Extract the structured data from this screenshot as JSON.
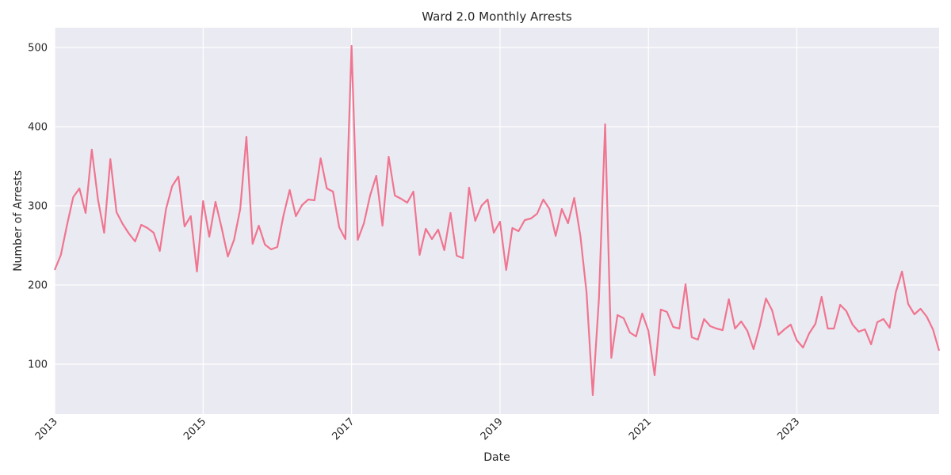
{
  "chart_data": {
    "type": "line",
    "title": "Ward 2.0 Monthly Arrests",
    "xlabel": "Date",
    "ylabel": "Number of Arrests",
    "xlim": [
      "2013-01",
      "2024-12"
    ],
    "ylim": [
      37,
      525
    ],
    "grid": true,
    "x_ticks": [
      "2013",
      "2015",
      "2017",
      "2019",
      "2021",
      "2023"
    ],
    "y_ticks": [
      100,
      200,
      300,
      400,
      500
    ],
    "colors": {
      "line": "#f07590",
      "plot_bg": "#eaeaf2",
      "grid": "#ffffff",
      "text": "#262626"
    },
    "series": [
      {
        "x": [
          "2013-01",
          "2013-02",
          "2013-03",
          "2013-04",
          "2013-05",
          "2013-06",
          "2013-07",
          "2013-08",
          "2013-09",
          "2013-10",
          "2013-11",
          "2013-12",
          "2014-01",
          "2014-02",
          "2014-03",
          "2014-04",
          "2014-05",
          "2014-06",
          "2014-07",
          "2014-08",
          "2014-09",
          "2014-10",
          "2014-11",
          "2014-12",
          "2015-01",
          "2015-02",
          "2015-03",
          "2015-04",
          "2015-05",
          "2015-06",
          "2015-07",
          "2015-08",
          "2015-09",
          "2015-10",
          "2015-11",
          "2015-12",
          "2016-01",
          "2016-02",
          "2016-03",
          "2016-04",
          "2016-05",
          "2016-06",
          "2016-07",
          "2016-08",
          "2016-09",
          "2016-10",
          "2016-11",
          "2016-12",
          "2017-01",
          "2017-02",
          "2017-03",
          "2017-04",
          "2017-05",
          "2017-06",
          "2017-07",
          "2017-08",
          "2017-09",
          "2017-10",
          "2017-11",
          "2017-12",
          "2018-01",
          "2018-02",
          "2018-03",
          "2018-04",
          "2018-05",
          "2018-06",
          "2018-07",
          "2018-08",
          "2018-09",
          "2018-10",
          "2018-11",
          "2018-12",
          "2019-01",
          "2019-02",
          "2019-03",
          "2019-04",
          "2019-05",
          "2019-06",
          "2019-07",
          "2019-08",
          "2019-09",
          "2019-10",
          "2019-11",
          "2019-12",
          "2020-01",
          "2020-02",
          "2020-03",
          "2020-04",
          "2020-05",
          "2020-06",
          "2020-07",
          "2020-08",
          "2020-09",
          "2020-10",
          "2020-11",
          "2020-12",
          "2021-01",
          "2021-02",
          "2021-03",
          "2021-04",
          "2021-05",
          "2021-06",
          "2021-07",
          "2021-08",
          "2021-09",
          "2021-10",
          "2021-11",
          "2021-12",
          "2022-01",
          "2022-02",
          "2022-03",
          "2022-04",
          "2022-05",
          "2022-06",
          "2022-07",
          "2022-08",
          "2022-09",
          "2022-10",
          "2022-11",
          "2022-12",
          "2023-01",
          "2023-02",
          "2023-03",
          "2023-04",
          "2023-05",
          "2023-06",
          "2023-07",
          "2023-08",
          "2023-09",
          "2023-10",
          "2023-11",
          "2023-12",
          "2024-01",
          "2024-02",
          "2024-03",
          "2024-04",
          "2024-05",
          "2024-06",
          "2024-07",
          "2024-08",
          "2024-09",
          "2024-10",
          "2024-11",
          "2024-12"
        ],
        "values": [
          219,
          238,
          276,
          311,
          322,
          291,
          371,
          308,
          266,
          359,
          292,
          277,
          265,
          255,
          276,
          272,
          266,
          243,
          296,
          325,
          337,
          274,
          287,
          217,
          306,
          261,
          305,
          272,
          236,
          257,
          296,
          387,
          252,
          275,
          251,
          245,
          248,
          288,
          320,
          287,
          301,
          308,
          307,
          360,
          322,
          318,
          273,
          258,
          502,
          257,
          278,
          313,
          338,
          275,
          362,
          313,
          309,
          304,
          318,
          238,
          271,
          258,
          270,
          244,
          291,
          237,
          234,
          323,
          281,
          300,
          308,
          266,
          280,
          219,
          272,
          268,
          282,
          284,
          290,
          308,
          296,
          262,
          296,
          278,
          310,
          262,
          190,
          61,
          183,
          403,
          108,
          162,
          158,
          140,
          135,
          164,
          142,
          86,
          169,
          166,
          147,
          145,
          201,
          134,
          131,
          157,
          148,
          145,
          143,
          182,
          145,
          154,
          142,
          119,
          148,
          183,
          168,
          137,
          144,
          150,
          130,
          121,
          139,
          151,
          185,
          145,
          145,
          175,
          167,
          150,
          141,
          144,
          125,
          153,
          157,
          146,
          191,
          217,
          176,
          163,
          170,
          160,
          144,
          117
        ]
      }
    ]
  }
}
